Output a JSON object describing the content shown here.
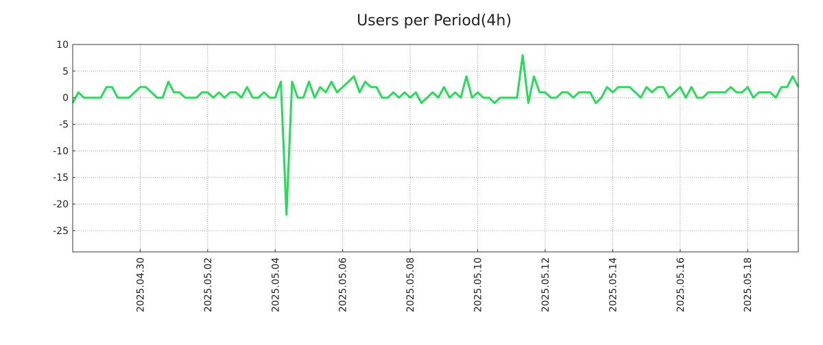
{
  "chart_data": {
    "type": "line",
    "title": "Users per Period(4h)",
    "xlabel": "",
    "ylabel": "",
    "ylim": [
      -29,
      10
    ],
    "xlim": [
      "2025-04-28T00:00",
      "2025-05-19T12:00"
    ],
    "grid": true,
    "legend": "none",
    "y_ticks": [
      10,
      5,
      0,
      -5,
      -10,
      -15,
      -20,
      -25
    ],
    "y_tick_labels": [
      "10",
      "5",
      "0",
      "-5",
      "-10",
      "-15",
      "-20",
      "-25"
    ],
    "x_ticks": [
      "2025-04-30T00:00",
      "2025-05-02T00:00",
      "2025-05-04T00:00",
      "2025-05-06T00:00",
      "2025-05-08T00:00",
      "2025-05-10T00:00",
      "2025-05-12T00:00",
      "2025-05-14T00:00",
      "2025-05-16T00:00",
      "2025-05-18T00:00"
    ],
    "x_tick_labels": [
      "2025.04.30",
      "2025.05.02",
      "2025.05.04",
      "2025.05.06",
      "2025.05.08",
      "2025.05.10",
      "2025.05.12",
      "2025.05.14",
      "2025.05.16",
      "2025.05.18"
    ],
    "series": [
      {
        "color": "#22dd55",
        "x": [
          "2025-04-28T00:00",
          "2025-04-28T04:00",
          "2025-04-28T08:00",
          "2025-04-28T12:00",
          "2025-04-28T16:00",
          "2025-04-28T20:00",
          "2025-04-29T00:00",
          "2025-04-29T04:00",
          "2025-04-29T08:00",
          "2025-04-29T12:00",
          "2025-04-29T16:00",
          "2025-04-29T20:00",
          "2025-04-30T00:00",
          "2025-04-30T04:00",
          "2025-04-30T08:00",
          "2025-04-30T12:00",
          "2025-04-30T16:00",
          "2025-04-30T20:00",
          "2025-05-01T00:00",
          "2025-05-01T04:00",
          "2025-05-01T08:00",
          "2025-05-01T12:00",
          "2025-05-01T16:00",
          "2025-05-01T20:00",
          "2025-05-02T00:00",
          "2025-05-02T04:00",
          "2025-05-02T08:00",
          "2025-05-02T12:00",
          "2025-05-02T16:00",
          "2025-05-02T20:00",
          "2025-05-03T00:00",
          "2025-05-03T04:00",
          "2025-05-03T08:00",
          "2025-05-03T12:00",
          "2025-05-03T16:00",
          "2025-05-03T20:00",
          "2025-05-04T00:00",
          "2025-05-04T04:00",
          "2025-05-04T08:00",
          "2025-05-04T12:00",
          "2025-05-04T16:00",
          "2025-05-04T20:00",
          "2025-05-05T00:00",
          "2025-05-05T04:00",
          "2025-05-05T08:00",
          "2025-05-05T12:00",
          "2025-05-05T16:00",
          "2025-05-05T20:00",
          "2025-05-06T00:00",
          "2025-05-06T04:00",
          "2025-05-06T08:00",
          "2025-05-06T12:00",
          "2025-05-06T16:00",
          "2025-05-06T20:00",
          "2025-05-07T00:00",
          "2025-05-07T04:00",
          "2025-05-07T08:00",
          "2025-05-07T12:00",
          "2025-05-07T16:00",
          "2025-05-07T20:00",
          "2025-05-08T00:00",
          "2025-05-08T04:00",
          "2025-05-08T08:00",
          "2025-05-08T12:00",
          "2025-05-08T16:00",
          "2025-05-08T20:00",
          "2025-05-09T00:00",
          "2025-05-09T04:00",
          "2025-05-09T08:00",
          "2025-05-09T12:00",
          "2025-05-09T16:00",
          "2025-05-09T20:00",
          "2025-05-10T00:00",
          "2025-05-10T04:00",
          "2025-05-10T08:00",
          "2025-05-10T12:00",
          "2025-05-10T16:00",
          "2025-05-10T20:00",
          "2025-05-11T00:00",
          "2025-05-11T04:00",
          "2025-05-11T08:00",
          "2025-05-11T12:00",
          "2025-05-11T16:00",
          "2025-05-11T20:00",
          "2025-05-12T00:00",
          "2025-05-12T04:00",
          "2025-05-12T08:00",
          "2025-05-12T12:00",
          "2025-05-12T16:00",
          "2025-05-12T20:00",
          "2025-05-13T00:00",
          "2025-05-13T04:00",
          "2025-05-13T08:00",
          "2025-05-13T12:00",
          "2025-05-13T16:00",
          "2025-05-13T20:00",
          "2025-05-14T00:00",
          "2025-05-14T04:00",
          "2025-05-14T08:00",
          "2025-05-14T12:00",
          "2025-05-14T16:00",
          "2025-05-14T20:00",
          "2025-05-15T00:00",
          "2025-05-15T04:00",
          "2025-05-15T08:00",
          "2025-05-15T12:00",
          "2025-05-15T16:00",
          "2025-05-15T20:00",
          "2025-05-16T00:00",
          "2025-05-16T04:00",
          "2025-05-16T08:00",
          "2025-05-16T12:00",
          "2025-05-16T16:00",
          "2025-05-16T20:00",
          "2025-05-17T00:00",
          "2025-05-17T04:00",
          "2025-05-17T08:00",
          "2025-05-17T12:00",
          "2025-05-17T16:00",
          "2025-05-17T20:00",
          "2025-05-18T00:00",
          "2025-05-18T04:00",
          "2025-05-18T08:00",
          "2025-05-18T12:00",
          "2025-05-18T16:00",
          "2025-05-18T20:00",
          "2025-05-19T00:00",
          "2025-05-19T04:00",
          "2025-05-19T08:00",
          "2025-05-19T12:00"
        ],
        "values": [
          -1,
          1,
          0,
          0,
          0,
          0,
          2,
          2,
          0,
          0,
          0,
          1,
          2,
          2,
          1,
          0,
          0,
          3,
          1,
          1,
          0,
          0,
          0,
          1,
          1,
          0,
          1,
          0,
          1,
          1,
          0,
          2,
          0,
          0,
          1,
          0,
          0,
          3,
          -22,
          3,
          0,
          0,
          3,
          0,
          2,
          1,
          3,
          1,
          2,
          3,
          4,
          1,
          3,
          2,
          2,
          0,
          0,
          1,
          0,
          1,
          0,
          1,
          -1,
          0,
          1,
          0,
          2,
          0,
          1,
          0,
          4,
          0,
          1,
          0,
          0,
          -1,
          0,
          0,
          0,
          0,
          8,
          -1,
          4,
          1,
          1,
          0,
          0,
          1,
          1,
          0,
          1,
          1,
          1,
          -1,
          0,
          2,
          1,
          2,
          2,
          2,
          1,
          0,
          2,
          1,
          2,
          2,
          0,
          1,
          2,
          0,
          2,
          0,
          0,
          1,
          1,
          1,
          1,
          2,
          1,
          1,
          2,
          0,
          1,
          1,
          1,
          0,
          2,
          2,
          4,
          2
        ]
      }
    ]
  }
}
